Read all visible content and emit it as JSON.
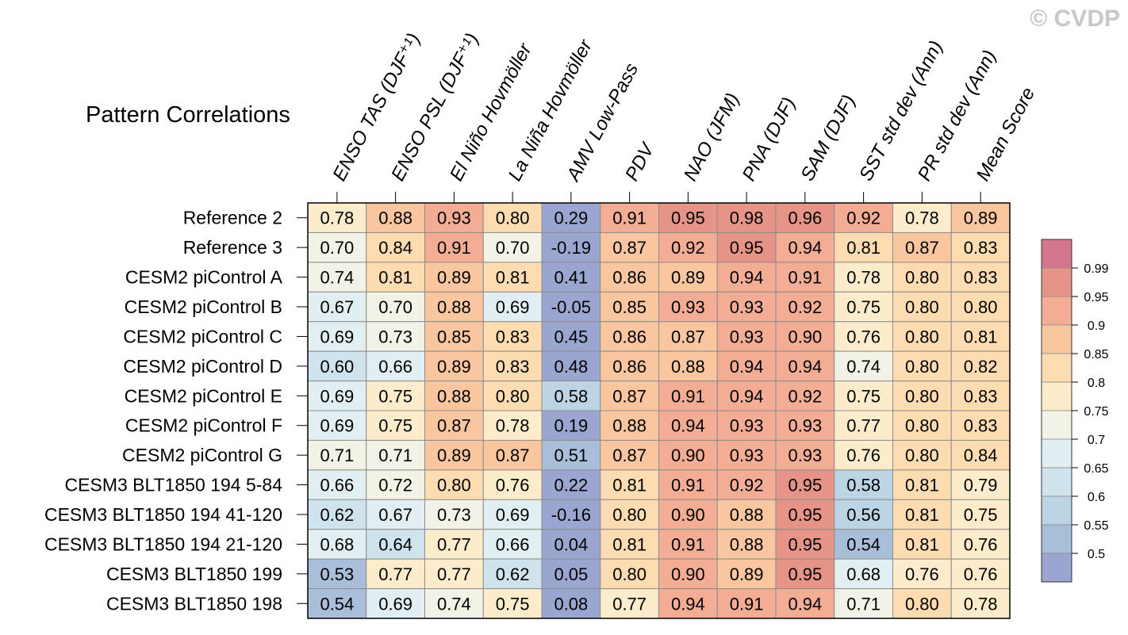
{
  "chart_data": {
    "type": "heatmap",
    "title": "Pattern Correlations",
    "watermark": "© CVDP",
    "columns": [
      "ENSO TAS (DJF⁺¹)",
      "ENSO PSL (DJF⁺¹)",
      "El Niño Hovmöller",
      "La Niña Hovmöller",
      "AMV Low-Pass",
      "PDV",
      "NAO (JFM)",
      "PNA (DJF)",
      "SAM (DJF)",
      "SST std dev (Ann)",
      "PR std dev (Ann)",
      "Mean Score"
    ],
    "rows": [
      "Reference 2",
      "Reference 3",
      "CESM2 piControl A",
      "CESM2 piControl B",
      "CESM2 piControl C",
      "CESM2 piControl D",
      "CESM2 piControl E",
      "CESM2 piControl F",
      "CESM2 piControl G",
      "CESM3 BLT1850 194 5-84",
      "CESM3 BLT1850 194 41-120",
      "CESM3 BLT1850 194 21-120",
      "CESM3 BLT1850 199",
      "CESM3 BLT1850 198"
    ],
    "values": [
      [
        "0.78",
        "0.88",
        "0.93",
        "0.80",
        "0.29",
        "0.91",
        "0.95",
        "0.98",
        "0.96",
        "0.92",
        "0.78",
        "0.89"
      ],
      [
        "0.70",
        "0.84",
        "0.91",
        "0.70",
        "-0.19",
        "0.87",
        "0.92",
        "0.95",
        "0.94",
        "0.81",
        "0.87",
        "0.83"
      ],
      [
        "0.74",
        "0.81",
        "0.89",
        "0.81",
        "0.41",
        "0.86",
        "0.89",
        "0.94",
        "0.91",
        "0.78",
        "0.80",
        "0.83"
      ],
      [
        "0.67",
        "0.70",
        "0.88",
        "0.69",
        "-0.05",
        "0.85",
        "0.93",
        "0.93",
        "0.92",
        "0.75",
        "0.80",
        "0.80"
      ],
      [
        "0.69",
        "0.73",
        "0.85",
        "0.83",
        "0.45",
        "0.86",
        "0.87",
        "0.93",
        "0.90",
        "0.76",
        "0.80",
        "0.81"
      ],
      [
        "0.60",
        "0.66",
        "0.89",
        "0.83",
        "0.48",
        "0.86",
        "0.88",
        "0.94",
        "0.94",
        "0.74",
        "0.80",
        "0.82"
      ],
      [
        "0.69",
        "0.75",
        "0.88",
        "0.80",
        "0.58",
        "0.87",
        "0.91",
        "0.94",
        "0.92",
        "0.75",
        "0.80",
        "0.83"
      ],
      [
        "0.69",
        "0.75",
        "0.87",
        "0.78",
        "0.19",
        "0.88",
        "0.94",
        "0.93",
        "0.93",
        "0.77",
        "0.80",
        "0.83"
      ],
      [
        "0.71",
        "0.71",
        "0.89",
        "0.87",
        "0.51",
        "0.87",
        "0.90",
        "0.93",
        "0.93",
        "0.76",
        "0.80",
        "0.84"
      ],
      [
        "0.66",
        "0.72",
        "0.80",
        "0.76",
        "0.22",
        "0.81",
        "0.91",
        "0.92",
        "0.95",
        "0.58",
        "0.81",
        "0.79"
      ],
      [
        "0.62",
        "0.67",
        "0.73",
        "0.69",
        "-0.16",
        "0.80",
        "0.90",
        "0.88",
        "0.95",
        "0.56",
        "0.81",
        "0.75"
      ],
      [
        "0.68",
        "0.64",
        "0.77",
        "0.66",
        "0.04",
        "0.81",
        "0.91",
        "0.88",
        "0.95",
        "0.54",
        "0.81",
        "0.76"
      ],
      [
        "0.53",
        "0.77",
        "0.77",
        "0.62",
        "0.05",
        "0.80",
        "0.90",
        "0.89",
        "0.95",
        "0.68",
        "0.76",
        "0.76"
      ],
      [
        "0.54",
        "0.69",
        "0.74",
        "0.75",
        "0.08",
        "0.77",
        "0.94",
        "0.91",
        "0.94",
        "0.71",
        "0.80",
        "0.78"
      ]
    ],
    "colorbar": {
      "levels": [
        "0.5",
        "0.55",
        "0.6",
        "0.65",
        "0.7",
        "0.75",
        "0.8",
        "0.85",
        "0.9",
        "0.95",
        "0.99"
      ],
      "colors": [
        "#9aa6cf",
        "#a9bfd9",
        "#bcd4e4",
        "#cfe3ec",
        "#e2eff2",
        "#f2f2e6",
        "#fdeccb",
        "#fcdcb0",
        "#f9c6a0",
        "#f2ad94",
        "#e59487",
        "#d4768d"
      ]
    }
  }
}
